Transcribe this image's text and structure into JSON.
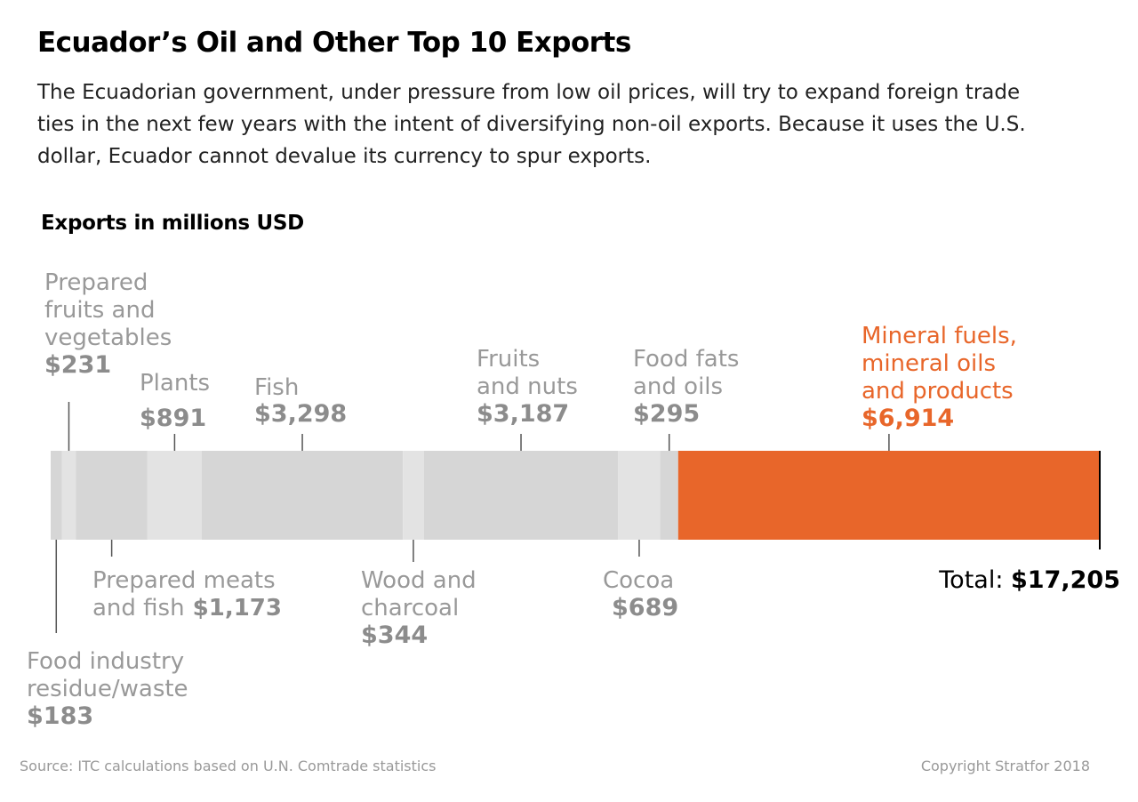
{
  "title": "Ecuador’s Oil and Other Top 10 Exports",
  "subtitle": "The Ecuadorian government, under pressure from low oil prices, will try to expand foreign trade ties in the next few years with the intent of diversifying non-oil exports. Because it uses the U.S. dollar, Ecuador cannot devalue its currency to spur exports.",
  "units_label": "Exports in millions USD",
  "footer": {
    "source": "Source: ITC calculations based on U.N. Comtrade statistics",
    "copyright": "Copyright Stratfor 2018"
  },
  "colors": {
    "segment_light": "#e3e3e3",
    "segment_dark": "#d6d6d6",
    "highlight": "#e8662a",
    "label_gray": "#999999",
    "value_gray": "#8c8c8c",
    "leader_line": "#555555"
  },
  "chart_data": {
    "type": "stacked-bar",
    "unit": "millions USD",
    "segments": [
      {
        "name": "Food industry residue/waste",
        "value": 183,
        "label_lines": [
          "Food industry",
          "residue/waste"
        ],
        "value_label": "$183",
        "position": "below"
      },
      {
        "name": "Prepared fruits and vegetables",
        "value": 231,
        "label_lines": [
          "Prepared",
          "fruits and",
          "vegetables"
        ],
        "value_label": "$231",
        "position": "above"
      },
      {
        "name": "Prepared meats and fish",
        "value": 1173,
        "label_lines": [
          "Prepared meats",
          "and fish"
        ],
        "value_label": "$1,173",
        "position": "below"
      },
      {
        "name": "Plants",
        "value": 891,
        "label_lines": [
          "Plants"
        ],
        "value_label": "$891",
        "position": "above"
      },
      {
        "name": "Fish",
        "value": 3298,
        "label_lines": [
          "Fish"
        ],
        "value_label": "$3,298",
        "position": "above"
      },
      {
        "name": "Wood and charcoal",
        "value": 344,
        "label_lines": [
          "Wood and",
          "charcoal"
        ],
        "value_label": "$344",
        "position": "below"
      },
      {
        "name": "Fruits and nuts",
        "value": 3187,
        "label_lines": [
          "Fruits",
          "and nuts"
        ],
        "value_label": "$3,187",
        "position": "above"
      },
      {
        "name": "Cocoa",
        "value": 689,
        "label_lines": [
          "Cocoa"
        ],
        "value_label": "$689",
        "position": "below"
      },
      {
        "name": "Food fats and oils",
        "value": 295,
        "label_lines": [
          "Food fats",
          "and oils"
        ],
        "value_label": "$295",
        "position": "above"
      },
      {
        "name": "Mineral fuels, mineral oils and products",
        "value": 6914,
        "label_lines": [
          "Mineral fuels,",
          "mineral oils",
          "and products"
        ],
        "value_label": "$6,914",
        "position": "above",
        "highlight": true
      }
    ],
    "total": 17205,
    "total_label": "Total:",
    "total_value_label": "$17,205"
  }
}
